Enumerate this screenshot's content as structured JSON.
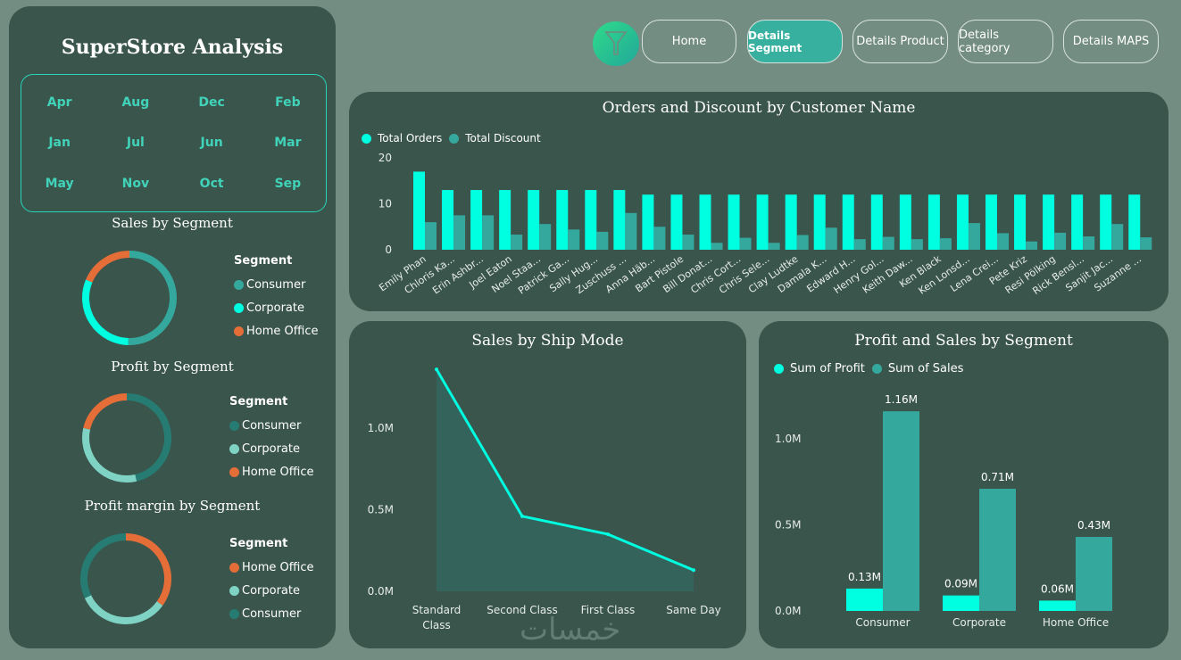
{
  "app": {
    "title": "SuperStore Analysis"
  },
  "months": [
    "Apr",
    "Aug",
    "Dec",
    "Feb",
    "Jan",
    "Jul",
    "Jun",
    "Mar",
    "May",
    "Nov",
    "Oct",
    "Sep"
  ],
  "nav": {
    "filter_icon": "funnel-icon",
    "buttons": [
      {
        "label": "Home",
        "active": false
      },
      {
        "label": "Details Segment",
        "active": true
      },
      {
        "label": "Details Product",
        "active": false
      },
      {
        "label": "Details category",
        "active": false
      },
      {
        "label": "Details MAPS",
        "active": false
      }
    ]
  },
  "colors": {
    "cyan": "#00ffe1",
    "teal": "#35a89e",
    "dark_teal": "#267c72",
    "mint": "#7fd3c5",
    "orange": "#e46d38",
    "panel": "#3a554b",
    "background": "#738d82"
  },
  "watermark": "خمسات",
  "chart_data": [
    {
      "id": "sales_by_segment",
      "type": "pie",
      "title": "Sales by Segment",
      "legend_title": "Segment",
      "legend_placement": "right",
      "categories": [
        "Consumer",
        "Corporate",
        "Home Office"
      ],
      "values": [
        1.16,
        0.71,
        0.43
      ],
      "unit": "M",
      "colors": [
        "#35a89e",
        "#00ffe1",
        "#e46d38"
      ]
    },
    {
      "id": "profit_by_segment",
      "type": "pie",
      "title": "Profit by Segment",
      "legend_title": "Segment",
      "legend_placement": "right",
      "categories": [
        "Consumer",
        "Corporate",
        "Home Office"
      ],
      "values": [
        0.13,
        0.09,
        0.06
      ],
      "unit": "M",
      "colors": [
        "#267c72",
        "#7fd3c5",
        "#e46d38"
      ]
    },
    {
      "id": "profit_margin_by_segment",
      "type": "pie",
      "title": "Profit margin by Segment",
      "legend_title": "Segment",
      "legend_placement": "right",
      "categories": [
        "Home Office",
        "Corporate",
        "Consumer"
      ],
      "values": [
        35,
        33,
        32
      ],
      "unit": "%",
      "colors": [
        "#e46d38",
        "#7fd3c5",
        "#267c72"
      ]
    },
    {
      "id": "orders_discount",
      "type": "bar",
      "title": "Orders and Discount by Customer Name",
      "legend_placement": "top-left",
      "categories": [
        "Emily Phan",
        "Chloris Ka...",
        "Erin Ashbr...",
        "Joel Eaton",
        "Noel Staa...",
        "Patrick Ga...",
        "Sally Hug...",
        "Zuschuss ...",
        "Anna Häb...",
        "Bart Pistole",
        "Bill Donat...",
        "Chris Cort...",
        "Chris Sele...",
        "Clay Ludtke",
        "Damala K...",
        "Edward H...",
        "Henry Gol...",
        "Keith Daw...",
        "Ken Black",
        "Ken Lonsd...",
        "Lena Crei...",
        "Pete Kriz",
        "Resi Pölking",
        "Rick Bensl...",
        "Sanjit Jac...",
        "Suzanne ..."
      ],
      "series": [
        {
          "name": "Total Orders",
          "color": "#00ffe1",
          "values": [
            17,
            13,
            13,
            13,
            13,
            13,
            13,
            13,
            12,
            12,
            12,
            12,
            12,
            12,
            12,
            12,
            12,
            12,
            12,
            12,
            12,
            12,
            12,
            12,
            12,
            12
          ]
        },
        {
          "name": "Total Discount",
          "color": "#35a89e",
          "values": [
            6.0,
            7.5,
            7.5,
            3.3,
            5.6,
            4.4,
            3.9,
            8.0,
            5.0,
            3.3,
            1.5,
            2.6,
            1.5,
            3.2,
            4.8,
            2.3,
            2.8,
            2.3,
            2.5,
            5.8,
            3.6,
            1.8,
            3.7,
            2.9,
            5.6,
            2.7
          ]
        }
      ],
      "yticks": [
        0,
        10,
        20
      ],
      "ylim": [
        0,
        20
      ],
      "xlabel": "",
      "ylabel": ""
    },
    {
      "id": "sales_by_ship_mode",
      "type": "area",
      "title": "Sales by Ship Mode",
      "categories": [
        "Standard Class",
        "Second Class",
        "First Class",
        "Same Day"
      ],
      "values": [
        1.36,
        0.46,
        0.35,
        0.13
      ],
      "unit": "M",
      "yticks": [
        "0.0M",
        "0.5M",
        "1.0M"
      ],
      "ylim": [
        0,
        1.4
      ],
      "line_color": "#00ffe1",
      "xlabel": "",
      "ylabel": ""
    },
    {
      "id": "profit_sales_by_segment",
      "type": "bar",
      "title": "Profit and Sales by Segment",
      "legend_placement": "top-left",
      "categories": [
        "Consumer",
        "Corporate",
        "Home Office"
      ],
      "series": [
        {
          "name": "Sum of Profit",
          "color": "#00ffe1",
          "values": [
            0.13,
            0.09,
            0.06
          ],
          "labels": [
            "0.13M",
            "0.09M",
            "0.06M"
          ]
        },
        {
          "name": "Sum of Sales",
          "color": "#35a89e",
          "values": [
            1.16,
            0.71,
            0.43
          ],
          "labels": [
            "1.16M",
            "0.71M",
            "0.43M"
          ]
        }
      ],
      "yticks": [
        "0.0M",
        "0.5M",
        "1.0M"
      ],
      "ylim": [
        0,
        1.25
      ],
      "xlabel": "",
      "ylabel": ""
    }
  ]
}
